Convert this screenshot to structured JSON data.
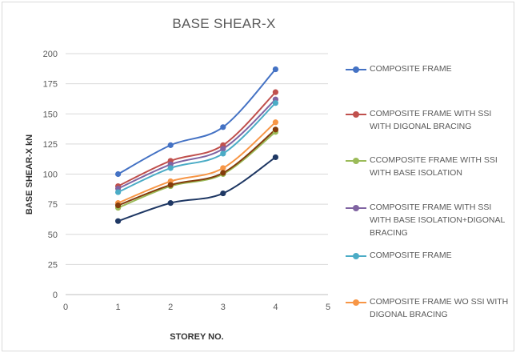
{
  "chart_data": {
    "type": "line",
    "title": "BASE SHEAR-X",
    "xlabel": "STOREY NO.",
    "ylabel": "BASE SHEAR-X kN",
    "xlim": [
      0,
      5
    ],
    "ylim": [
      0,
      200
    ],
    "x_ticks": [
      0,
      1,
      2,
      3,
      4,
      5
    ],
    "y_ticks": [
      0,
      25,
      50,
      75,
      100,
      125,
      150,
      175,
      200
    ],
    "grid": "horizontal",
    "legend_position": "right",
    "x": [
      1,
      2,
      3,
      4
    ],
    "series": [
      {
        "name": "COMPOSITE FRAME",
        "values": [
          100,
          124,
          139,
          187
        ],
        "color": "#4472c4"
      },
      {
        "name": "COMPOSITE FRAME WITH SSI WITH DIGONAL BRACING",
        "values": [
          90,
          111,
          124,
          168
        ],
        "color": "#c0504d"
      },
      {
        "name": "CCOMPOSITE FRAME WITH SSI WITH BASE ISOLATION",
        "values": [
          72,
          90,
          100,
          135
        ],
        "color": "#9bbb59"
      },
      {
        "name": "COMPOSITE FRAME WITH SSI WITH BASE ISOLATION+DIGONAL BRACING",
        "values": [
          88,
          108,
          121,
          162
        ],
        "color": "#8064a2"
      },
      {
        "name": "COMPOSITE FRAME",
        "values": [
          85,
          105,
          117,
          159
        ],
        "color": "#4bacc6"
      },
      {
        "name": "COMPOSITE FRAME WO SSI WITH DIGONAL BRACING",
        "values": [
          76,
          94,
          105,
          143
        ],
        "color": "#f79646"
      },
      {
        "name": "",
        "values": [
          74,
          91,
          101,
          137
        ],
        "color": "#843c0c"
      },
      {
        "name": "",
        "values": [
          61,
          76,
          84,
          114
        ],
        "color": "#1f3864"
      }
    ]
  }
}
